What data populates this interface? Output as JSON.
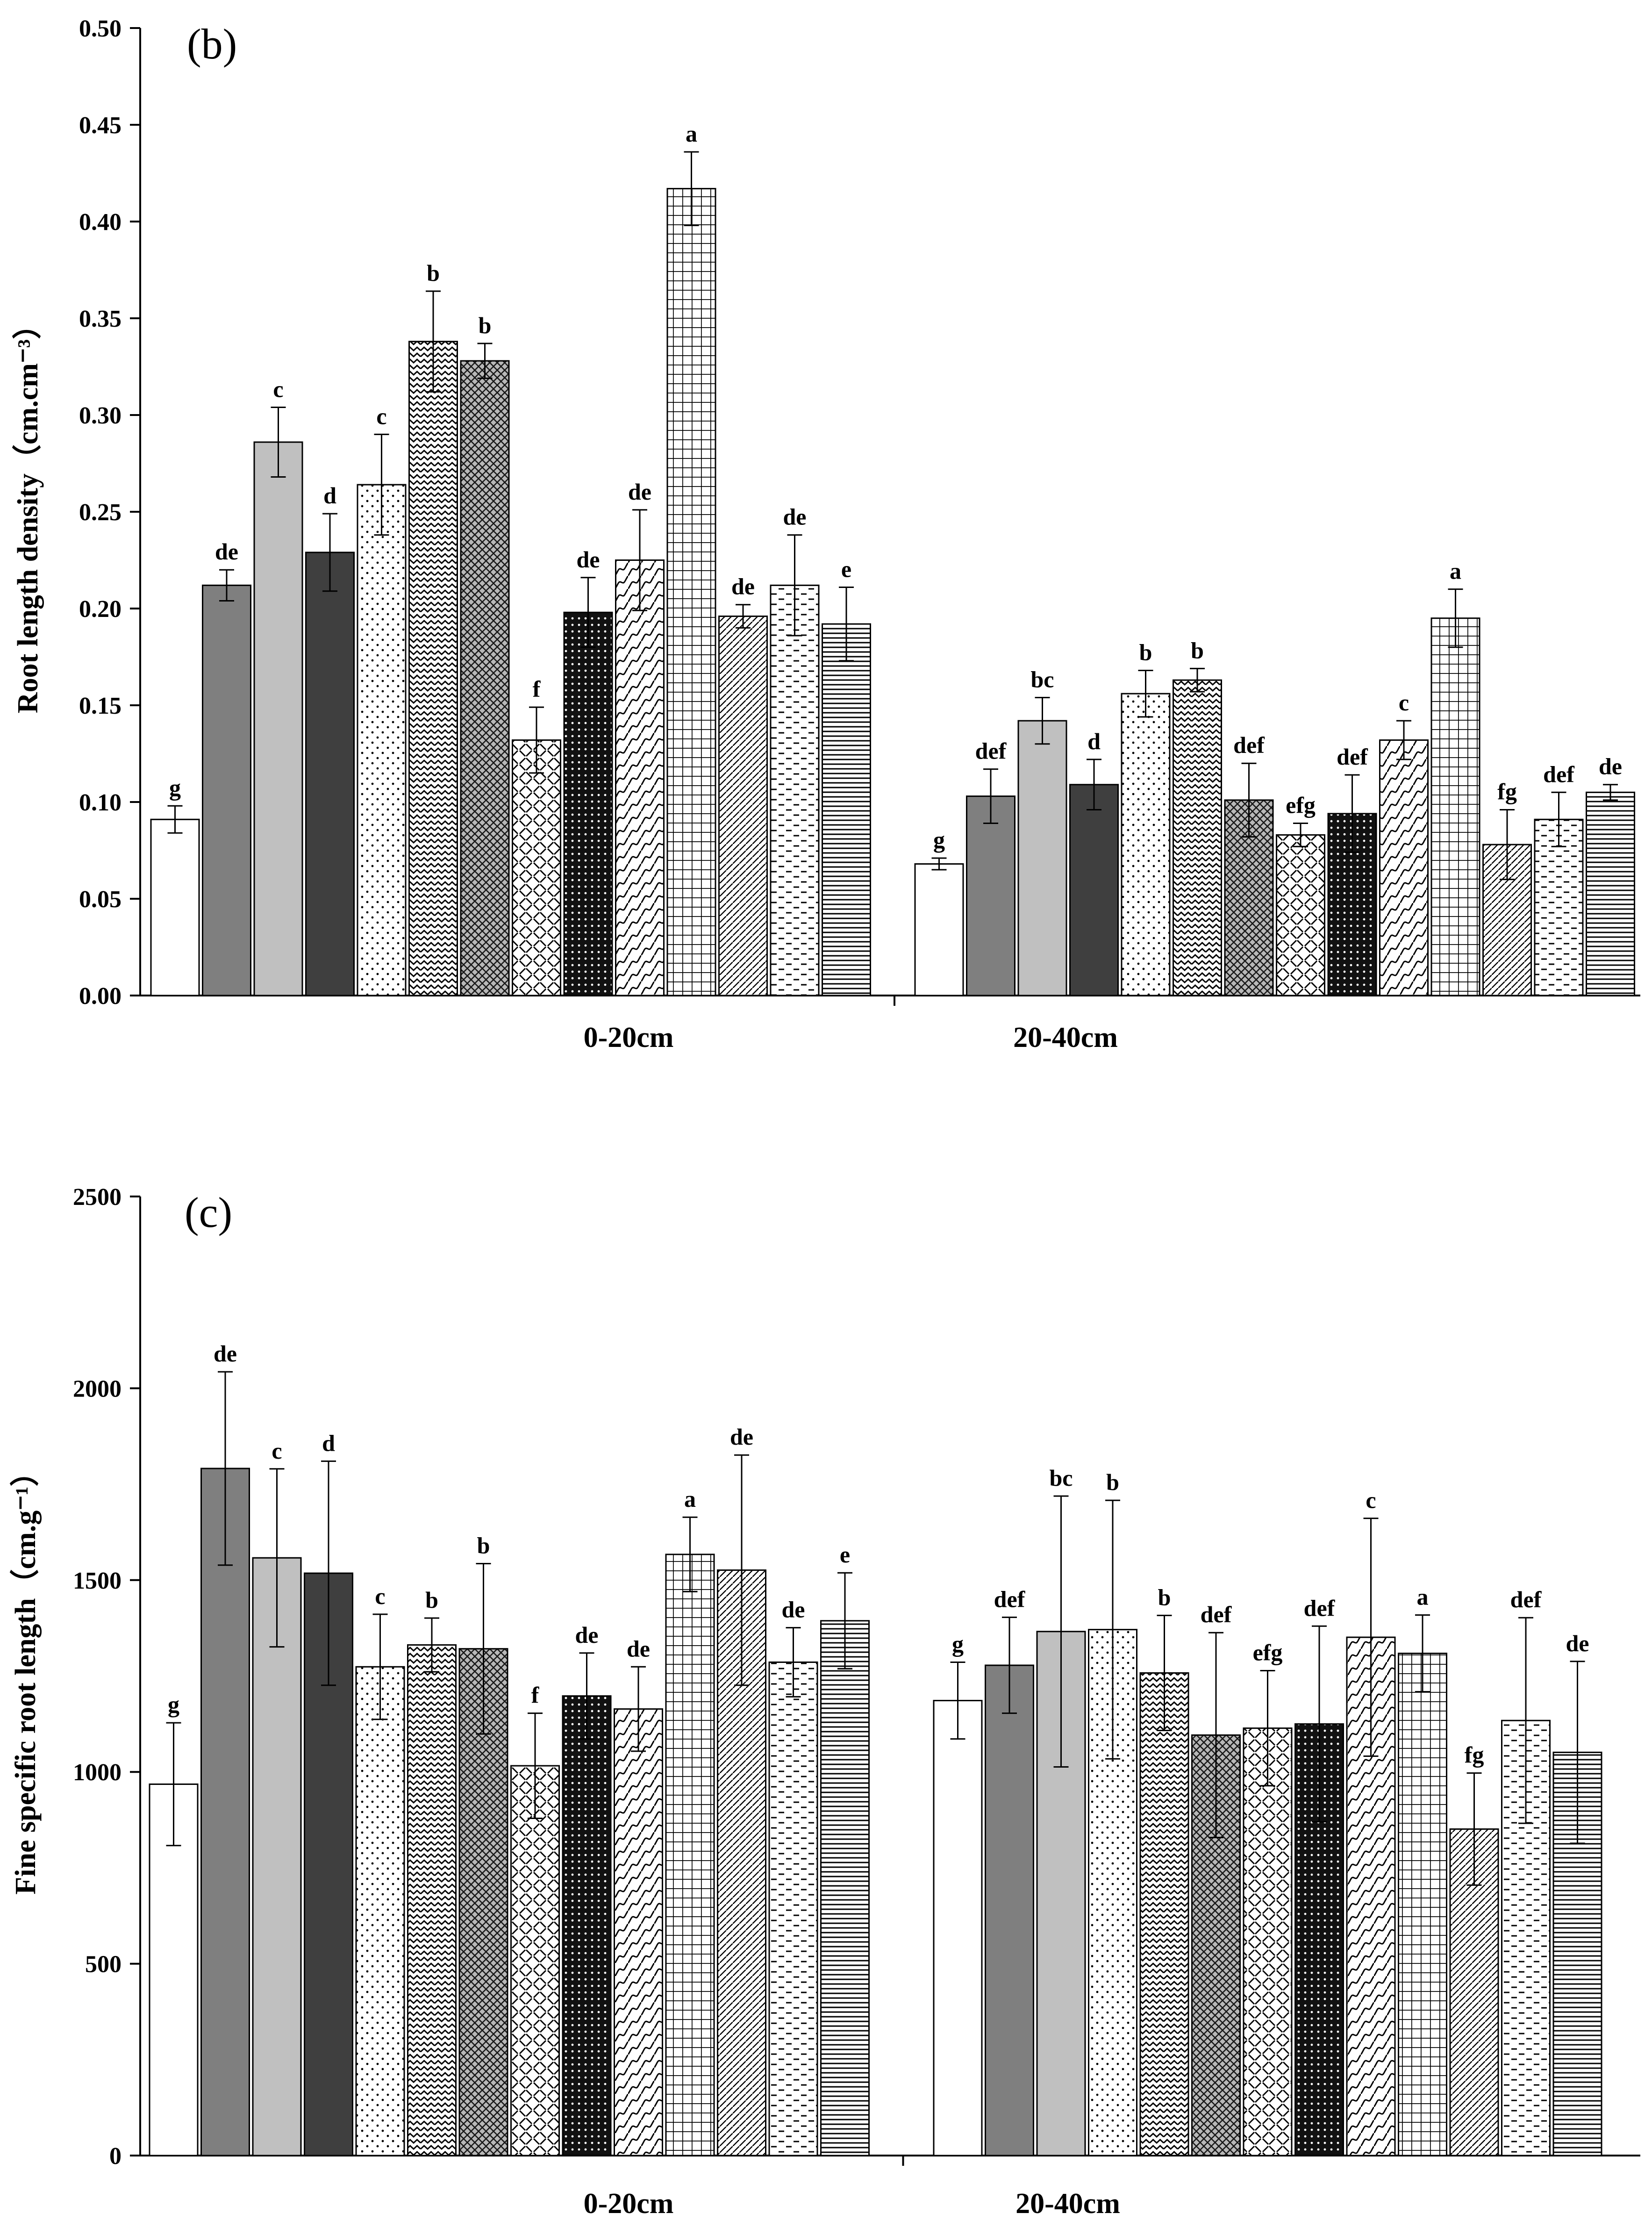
{
  "figure": {
    "panels": [
      "(b)",
      "(c)"
    ]
  },
  "patterns": [
    {
      "name": "white",
      "fill": "#ffffff"
    },
    {
      "name": "gray",
      "fill": "#7f7f7f"
    },
    {
      "name": "light-gray",
      "fill": "#c0c0c0"
    },
    {
      "name": "dark-gray",
      "fill": "#3f3f3f"
    },
    {
      "name": "dots",
      "fill": "url(#p-dots)"
    },
    {
      "name": "zigzag",
      "fill": "url(#p-zigzag)"
    },
    {
      "name": "diamond",
      "fill": "url(#p-diamond)"
    },
    {
      "name": "weave",
      "fill": "url(#p-weave)"
    },
    {
      "name": "black-dots",
      "fill": "url(#p-blackdots)"
    },
    {
      "name": "wave",
      "fill": "url(#p-wave)"
    },
    {
      "name": "grid",
      "fill": "url(#p-grid)"
    },
    {
      "name": "diagonal",
      "fill": "url(#p-diag)"
    },
    {
      "name": "dashes",
      "fill": "url(#p-dash)"
    },
    {
      "name": "horizontal",
      "fill": "url(#p-hline)"
    }
  ],
  "chart_data": [
    {
      "type": "bar",
      "panel": "(b)",
      "title": "",
      "ylabel": "Root length density（cm.cm⁻³）",
      "xlabel": "",
      "ylim": [
        0,
        0.5
      ],
      "yticks": [
        "0.00",
        "0.05",
        "0.10",
        "0.15",
        "0.20",
        "0.25",
        "0.30",
        "0.35",
        "0.40",
        "0.45",
        "0.50"
      ],
      "groups": [
        {
          "label": "0-20cm",
          "values": [
            0.091,
            0.212,
            0.286,
            0.229,
            0.264,
            0.338,
            0.328,
            0.132,
            0.198,
            0.225,
            0.417,
            0.196,
            0.212,
            0.192
          ],
          "errors": [
            0.007,
            0.008,
            0.018,
            0.02,
            0.026,
            0.026,
            0.009,
            0.017,
            0.018,
            0.026,
            0.019,
            0.006,
            0.026,
            0.019
          ],
          "letters": [
            "g",
            "de",
            "c",
            "d",
            "c",
            "b",
            "b",
            "f",
            "de",
            "de",
            "a",
            "de",
            "de",
            "e"
          ]
        },
        {
          "label": "20-40cm",
          "values": [
            0.068,
            0.103,
            0.142,
            0.109,
            0.156,
            0.163,
            0.101,
            0.083,
            0.094,
            0.132,
            0.195,
            0.078,
            0.091,
            0.105
          ],
          "errors": [
            0.003,
            0.014,
            0.012,
            0.013,
            0.012,
            0.006,
            0.019,
            0.006,
            0.02,
            0.01,
            0.015,
            0.018,
            0.014,
            0.004
          ],
          "letters": [
            "g",
            "def",
            "bc",
            "d",
            "b",
            "b",
            "def",
            "efg",
            "def",
            "c",
            "a",
            "fg",
            "def",
            "de"
          ]
        }
      ]
    },
    {
      "type": "bar",
      "panel": "(c)",
      "title": "",
      "ylabel": "Fine specific root length（cm.g⁻¹）",
      "xlabel": "",
      "ylim": [
        0,
        2500
      ],
      "yticks": [
        "0",
        "500",
        "1000",
        "1500",
        "2000",
        "2500"
      ],
      "groups": [
        {
          "label": "0-20cm",
          "values": [
            968,
            1791,
            1558,
            1518,
            1274,
            1331,
            1321,
            1016,
            1198,
            1164,
            1567,
            1526,
            1286,
            1394
          ],
          "errors": [
            160,
            252,
            232,
            292,
            137,
            70,
            222,
            137,
            112,
            110,
            97,
            300,
            90,
            125
          ],
          "letters": [
            "g",
            "de",
            "c",
            "d",
            "c",
            "b",
            "b",
            "f",
            "de",
            "de",
            "a",
            "de",
            "de",
            "e"
          ]
        },
        {
          "label": "20-40cm",
          "values": [
            1186,
            1278,
            1366,
            1371,
            1258,
            1096,
            1114,
            1125,
            1351,
            1309,
            851,
            1134,
            1051
          ],
          "errors": [
            100,
            125,
            353,
            337,
            150,
            267,
            150,
            255,
            310,
            100,
            146,
            268,
            237
          ],
          "letters": [
            "g",
            "def",
            "bc",
            "b",
            "b",
            "def",
            "efg",
            "def",
            "c",
            "a",
            "fg",
            "def",
            "de"
          ],
          "pattern_index": [
            0,
            1,
            2,
            4,
            5,
            6,
            7,
            8,
            9,
            10,
            11,
            12,
            13
          ]
        }
      ]
    }
  ]
}
